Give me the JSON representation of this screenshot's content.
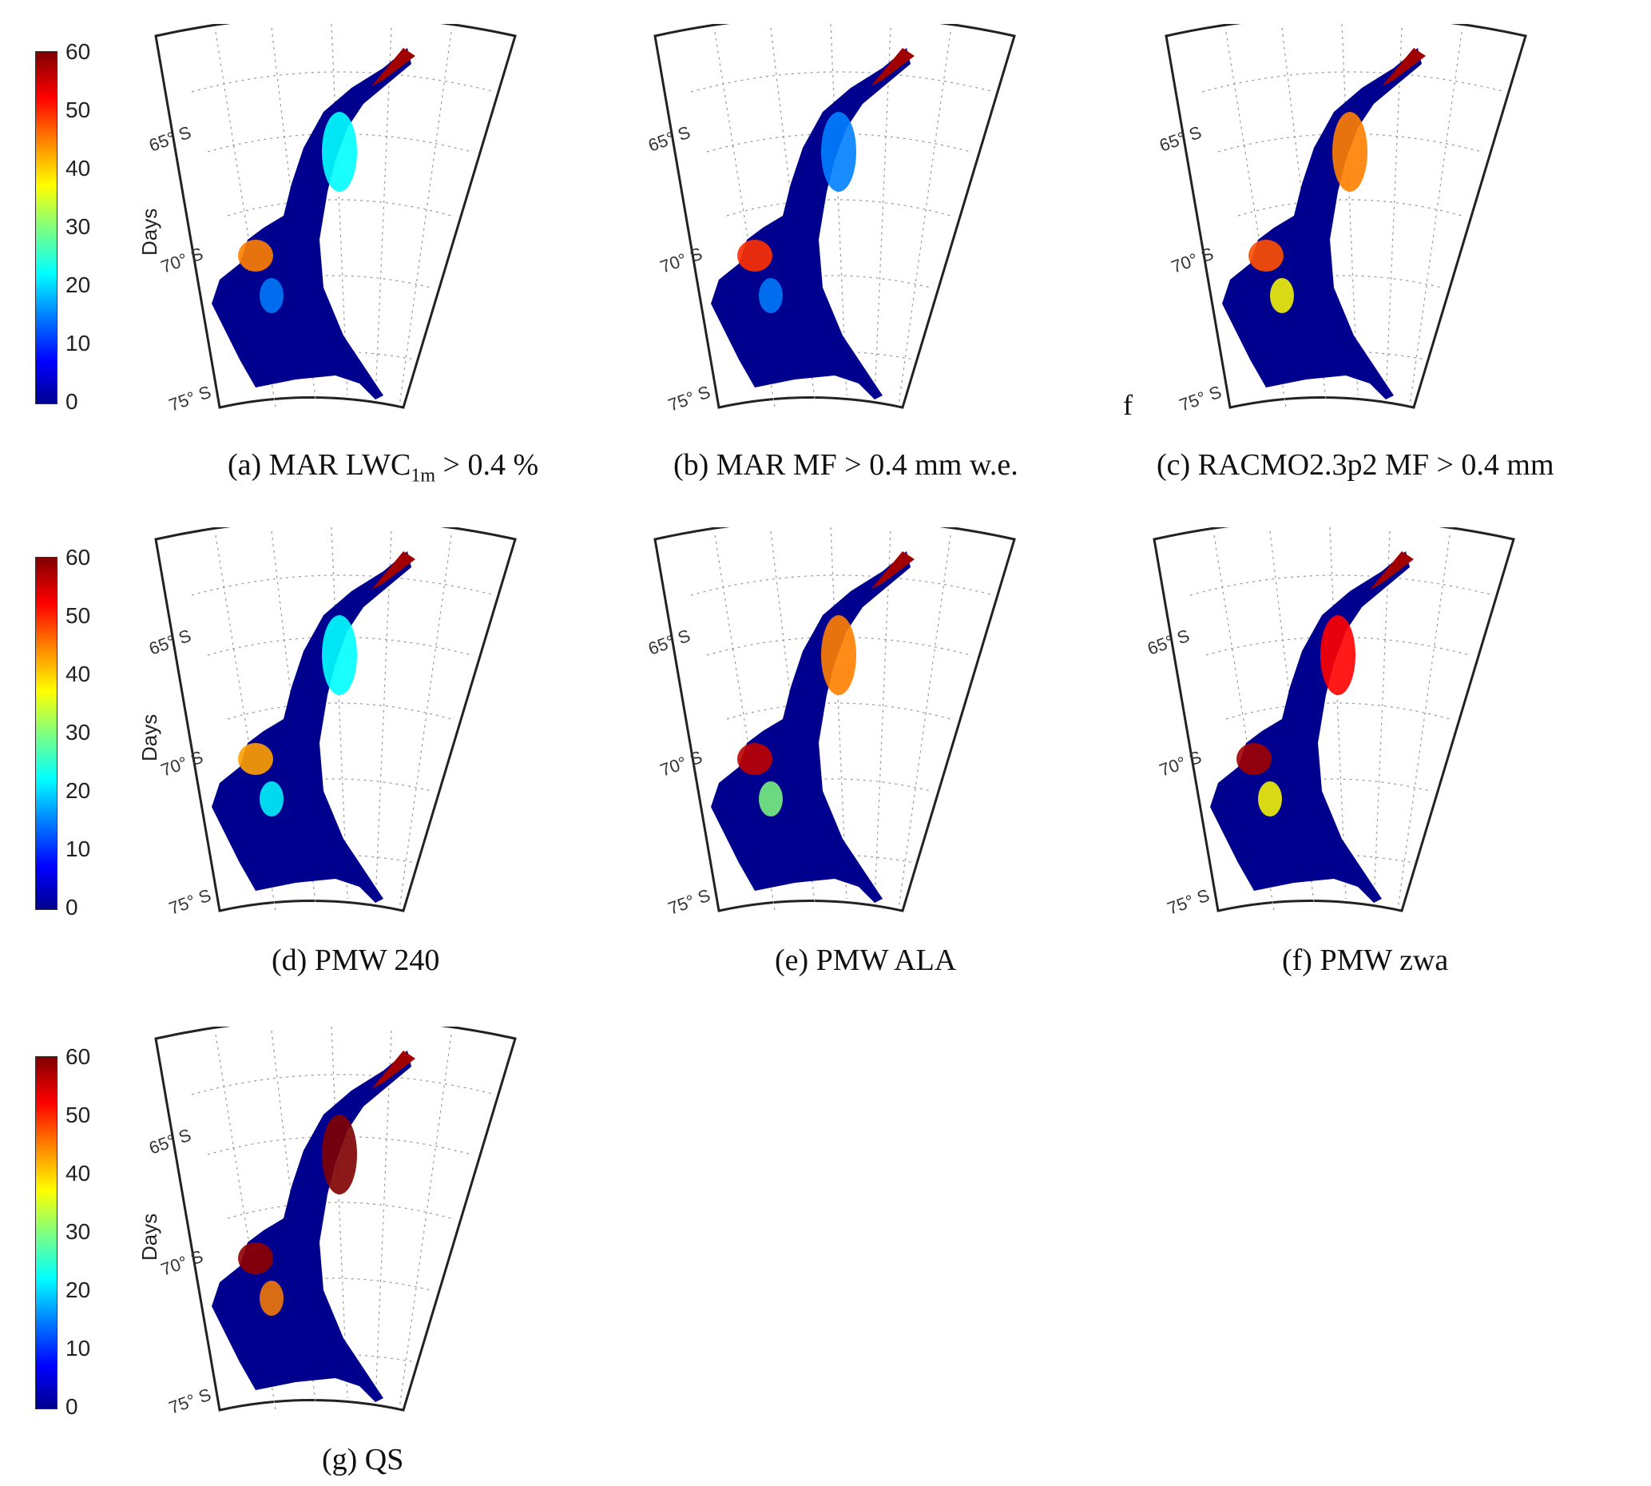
{
  "colorbar": {
    "label": "Days",
    "ticks": [
      "60",
      "50",
      "40",
      "30",
      "20",
      "10",
      "0"
    ],
    "colormap": [
      "#00008f",
      "#0000ff",
      "#0080ff",
      "#00ffff",
      "#7fff7f",
      "#ffff00",
      "#ff8000",
      "#ff0000",
      "#800000"
    ]
  },
  "latitude_labels": [
    "65° S",
    "70° S",
    "75° S"
  ],
  "panels": [
    {
      "caption": "(a)   MAR LWC",
      "caption_sub": "1m",
      "caption_tail": " > 0.4  %",
      "peak_color": "#ff8000",
      "east_level": 0.35
    },
    {
      "caption": "(b) MAR MF > 0.4 mm w.e.",
      "caption_sub": "",
      "caption_tail": "",
      "peak_color": "#ff3000",
      "east_level": 0.3
    },
    {
      "caption": "(c) RACMO2.3p2 MF > 0.4 mm",
      "caption_sub": "",
      "caption_tail": "",
      "peak_color": "#ff5000",
      "east_level": 0.75
    },
    {
      "caption": "(d)  PMW 240",
      "caption_sub": "",
      "caption_tail": "",
      "peak_color": "#ffa000",
      "east_level": 0.4
    },
    {
      "caption": "(e) PMW ALA",
      "caption_sub": "",
      "caption_tail": "",
      "peak_color": "#c00000",
      "east_level": 0.7
    },
    {
      "caption": "(f) PMW zwa",
      "caption_sub": "",
      "caption_tail": "",
      "peak_color": "#a00000",
      "east_level": 0.85
    },
    {
      "caption": "(g) QS",
      "caption_sub": "",
      "caption_tail": "",
      "peak_color": "#900000",
      "east_level": 0.95
    }
  ],
  "stray_mark": "f"
}
